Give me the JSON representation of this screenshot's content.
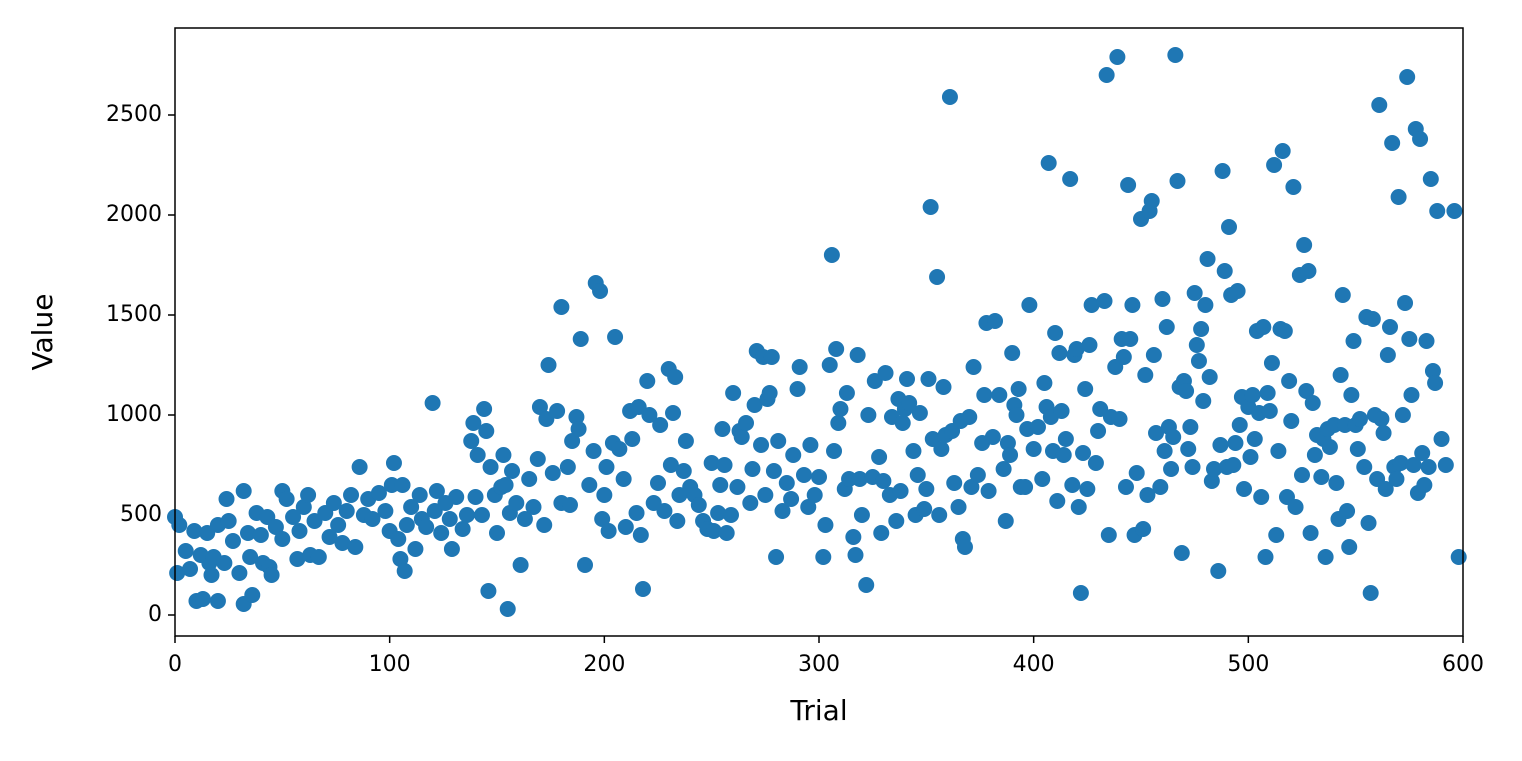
{
  "chart_data": {
    "type": "scatter",
    "x_label": "Trial",
    "y_label": "Value",
    "color": "#1f77b4",
    "xlim": [
      0,
      600
    ],
    "ylim": [
      -105,
      2935
    ],
    "xticks": [
      0,
      100,
      200,
      300,
      400,
      500,
      600
    ],
    "yticks": [
      0,
      500,
      1000,
      1500,
      2000,
      2500
    ],
    "x": [
      0,
      1,
      2,
      5,
      7,
      9,
      10,
      12,
      13,
      15,
      16,
      17,
      18,
      20,
      20,
      23,
      24,
      25,
      27,
      30,
      32,
      32,
      34,
      35,
      36,
      38,
      40,
      41,
      43,
      44,
      45,
      47,
      50,
      50,
      52,
      55,
      57,
      58,
      60,
      62,
      63,
      65,
      67,
      70,
      72,
      74,
      76,
      78,
      80,
      82,
      84,
      86,
      88,
      90,
      92,
      95,
      98,
      100,
      101,
      102,
      104,
      105,
      106,
      107,
      108,
      110,
      112,
      114,
      115,
      117,
      120,
      121,
      122,
      124,
      126,
      128,
      129,
      131,
      134,
      136,
      138,
      139,
      140,
      141,
      143,
      144,
      145,
      146,
      147,
      149,
      150,
      152,
      153,
      154,
      155,
      156,
      157,
      159,
      161,
      163,
      165,
      167,
      169,
      170,
      172,
      173,
      174,
      176,
      178,
      180,
      180,
      183,
      184,
      185,
      187,
      188,
      189,
      191,
      193,
      195,
      196,
      198,
      199,
      200,
      201,
      202,
      204,
      205,
      207,
      209,
      210,
      212,
      213,
      215,
      216,
      217,
      218,
      220,
      221,
      223,
      225,
      226,
      228,
      230,
      231,
      232,
      233,
      234,
      235,
      237,
      238,
      240,
      242,
      244,
      246,
      248,
      250,
      251,
      253,
      254,
      255,
      256,
      257,
      259,
      260,
      262,
      263,
      264,
      266,
      268,
      269,
      270,
      271,
      273,
      274,
      275,
      276,
      277,
      278,
      279,
      280,
      281,
      283,
      285,
      287,
      288,
      290,
      291,
      293,
      295,
      296,
      298,
      300,
      302,
      303,
      305,
      306,
      307,
      308,
      309,
      310,
      312,
      313,
      314,
      316,
      317,
      318,
      319,
      320,
      322,
      323,
      325,
      326,
      328,
      329,
      330,
      331,
      333,
      334,
      336,
      337,
      338,
      339,
      340,
      341,
      342,
      344,
      345,
      346,
      347,
      349,
      350,
      351,
      352,
      353,
      355,
      356,
      357,
      358,
      359,
      361,
      362,
      363,
      365,
      366,
      367,
      368,
      370,
      371,
      372,
      374,
      376,
      377,
      378,
      379,
      381,
      382,
      384,
      386,
      387,
      388,
      389,
      390,
      391,
      392,
      393,
      394,
      396,
      397,
      398,
      400,
      402,
      404,
      405,
      406,
      407,
      408,
      409,
      410,
      411,
      412,
      413,
      414,
      415,
      417,
      418,
      419,
      420,
      421,
      422,
      423,
      424,
      425,
      426,
      427,
      429,
      430,
      431,
      433,
      434,
      435,
      436,
      438,
      439,
      440,
      441,
      442,
      443,
      444,
      445,
      446,
      447,
      448,
      450,
      451,
      452,
      453,
      454,
      455,
      456,
      457,
      459,
      460,
      461,
      462,
      463,
      464,
      465,
      466,
      467,
      468,
      469,
      470,
      471,
      472,
      473,
      474,
      475,
      476,
      477,
      478,
      479,
      480,
      481,
      482,
      483,
      484,
      486,
      487,
      488,
      489,
      490,
      491,
      492,
      493,
      494,
      495,
      496,
      497,
      498,
      500,
      501,
      502,
      503,
      504,
      505,
      506,
      507,
      508,
      509,
      510,
      511,
      512,
      513,
      514,
      515,
      516,
      517,
      518,
      519,
      520,
      521,
      522,
      524,
      525,
      526,
      527,
      528,
      529,
      530,
      531,
      532,
      534,
      535,
      536,
      537,
      538,
      540,
      541,
      542,
      543,
      544,
      545,
      546,
      547,
      548,
      549,
      550,
      551,
      552,
      554,
      555,
      556,
      557,
      558,
      559,
      560,
      561,
      562,
      563,
      564,
      565,
      566,
      567,
      568,
      569,
      570,
      571,
      572,
      573,
      574,
      575,
      576,
      577,
      578,
      579,
      580,
      581,
      582,
      583,
      584,
      585,
      586,
      587,
      588,
      590,
      592,
      596,
      598
    ],
    "values": [
      490,
      210,
      450,
      320,
      230,
      420,
      70,
      300,
      80,
      410,
      260,
      200,
      290,
      70,
      450,
      260,
      580,
      470,
      370,
      210,
      55,
      620,
      410,
      290,
      100,
      510,
      400,
      260,
      490,
      240,
      200,
      440,
      380,
      620,
      580,
      490,
      280,
      420,
      540,
      600,
      300,
      470,
      290,
      510,
      390,
      560,
      450,
      360,
      520,
      600,
      340,
      740,
      500,
      580,
      480,
      610,
      520,
      420,
      650,
      760,
      380,
      280,
      650,
      220,
      450,
      540,
      330,
      600,
      480,
      440,
      1060,
      520,
      620,
      410,
      560,
      480,
      330,
      590,
      430,
      500,
      870,
      960,
      590,
      800,
      500,
      1030,
      920,
      120,
      740,
      600,
      410,
      640,
      800,
      650,
      30,
      510,
      720,
      560,
      250,
      480,
      680,
      540,
      780,
      1040,
      450,
      980,
      1250,
      710,
      1020,
      560,
      1540,
      740,
      550,
      870,
      990,
      930,
      1380,
      250,
      650,
      820,
      1660,
      1620,
      480,
      600,
      740,
      420,
      860,
      1390,
      830,
      680,
      440,
      1020,
      880,
      510,
      1040,
      400,
      130,
      1170,
      1000,
      560,
      660,
      950,
      520,
      1230,
      750,
      1010,
      1190,
      470,
      600,
      720,
      870,
      640,
      600,
      550,
      470,
      430,
      760,
      420,
      510,
      650,
      930,
      750,
      410,
      500,
      1110,
      640,
      920,
      890,
      960,
      560,
      730,
      1050,
      1320,
      850,
      1290,
      600,
      1080,
      1110,
      1290,
      720,
      290,
      870,
      520,
      660,
      580,
      800,
      1130,
      1240,
      700,
      540,
      850,
      600,
      690,
      290,
      450,
      1250,
      1800,
      820,
      1330,
      960,
      1030,
      630,
      1110,
      680,
      390,
      300,
      1300,
      680,
      500,
      150,
      1000,
      690,
      1170,
      790,
      410,
      670,
      1210,
      600,
      990,
      470,
      1080,
      620,
      960,
      1030,
      1180,
      1060,
      820,
      500,
      700,
      1010,
      530,
      630,
      1180,
      2040,
      880,
      1690,
      500,
      830,
      1140,
      900,
      2590,
      920,
      660,
      540,
      970,
      380,
      340,
      990,
      640,
      1240,
      700,
      860,
      1100,
      1460,
      620,
      890,
      1470,
      1100,
      730,
      470,
      860,
      800,
      1310,
      1050,
      1000,
      1130,
      640,
      640,
      930,
      1550,
      830,
      940,
      680,
      1160,
      1040,
      2260,
      990,
      820,
      1410,
      570,
      1310,
      1020,
      800,
      880,
      2180,
      650,
      1300,
      1330,
      540,
      110,
      810,
      1130,
      630,
      1350,
      1550,
      760,
      920,
      1030,
      1570,
      2700,
      400,
      990,
      1240,
      2790,
      980,
      1380,
      1290,
      640,
      2150,
      1380,
      1550,
      400,
      710,
      1980,
      430,
      1200,
      600,
      2020,
      2070,
      1300,
      910,
      640,
      1580,
      820,
      1440,
      940,
      730,
      890,
      2800,
      2170,
      1140,
      310,
      1170,
      1120,
      830,
      940,
      740,
      1610,
      1350,
      1270,
      1430,
      1070,
      1550,
      1780,
      1190,
      670,
      730,
      220,
      850,
      2220,
      1720,
      740,
      1940,
      1600,
      750,
      860,
      1620,
      950,
      1090,
      630,
      1040,
      790,
      1100,
      880,
      1420,
      1010,
      590,
      1440,
      290,
      1110,
      1020,
      1260,
      2250,
      400,
      820,
      1430,
      2320,
      1420,
      590,
      1170,
      970,
      2140,
      540,
      1700,
      700,
      1850,
      1120,
      1720,
      410,
      1060,
      800,
      900,
      690,
      880,
      290,
      930,
      840,
      950,
      660,
      480,
      1200,
      1600,
      950,
      520,
      340,
      1100,
      1370,
      950,
      830,
      980,
      740,
      1490,
      460,
      110,
      1480,
      1000,
      680,
      2550,
      980,
      910,
      630,
      1300,
      1440,
      2360,
      740,
      680,
      2090,
      760,
      1000,
      1560,
      2690,
      1380,
      1100,
      750,
      2430,
      610,
      2380,
      810,
      650,
      1370,
      740,
      2180,
      1220,
      1160,
      2020,
      880,
      750,
      2020,
      290
    ]
  }
}
